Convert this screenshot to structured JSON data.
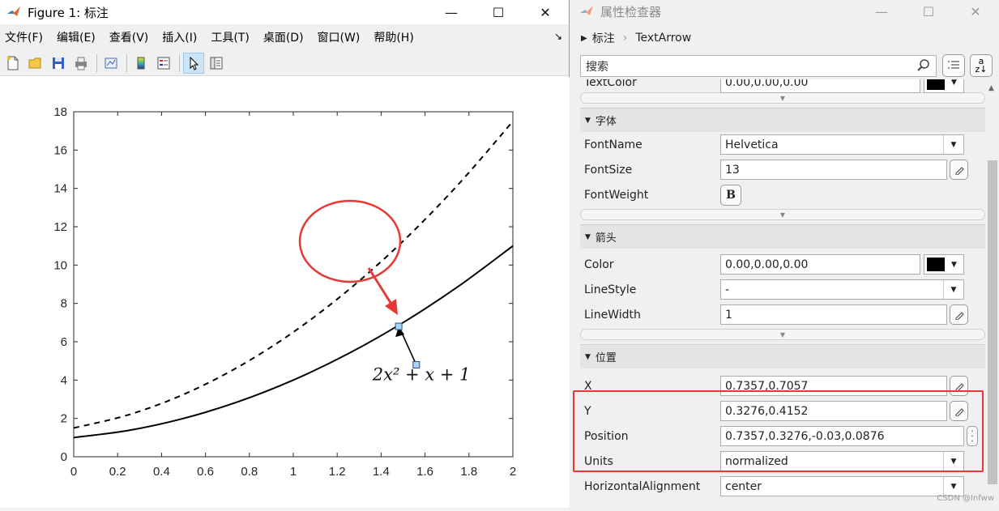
{
  "figure": {
    "title": "Figure 1: 标注",
    "menu": [
      "文件(F)",
      "编辑(E)",
      "查看(V)",
      "插入(I)",
      "工具(T)",
      "桌面(D)",
      "窗口(W)",
      "帮助(H)"
    ],
    "window_controls": {
      "minimize": "—",
      "maximize": "☐",
      "close": "✕"
    }
  },
  "chart_data": {
    "type": "line",
    "xlim": [
      0,
      2
    ],
    "ylim": [
      0,
      18
    ],
    "x_ticks": [
      "0",
      "0.2",
      "0.4",
      "0.6",
      "0.8",
      "1",
      "1.2",
      "1.4",
      "1.6",
      "1.8",
      "2"
    ],
    "y_ticks": [
      "0",
      "2",
      "4",
      "6",
      "8",
      "10",
      "12",
      "14",
      "16",
      "18"
    ],
    "series": [
      {
        "style": "solid",
        "function": "2x^2+x+1",
        "x": [
          0,
          0.25,
          0.5,
          0.75,
          1,
          1.25,
          1.5,
          1.75,
          2
        ],
        "y": [
          1,
          1.375,
          2,
          2.875,
          4,
          5.375,
          7,
          8.875,
          11
        ]
      },
      {
        "style": "dashed",
        "function": "3x^2+2x+1.5",
        "x": [
          0,
          0.25,
          0.5,
          0.75,
          1,
          1.25,
          1.5,
          1.75,
          2
        ],
        "y": [
          1.5,
          2.19,
          3.25,
          4.69,
          6.5,
          8.69,
          11.25,
          14.19,
          17.5
        ]
      }
    ],
    "annotation": {
      "text": "2x² + x + 1",
      "arrow_tail": [
        1.56,
        4.8
      ],
      "arrow_head": [
        1.48,
        6.8
      ]
    },
    "colors": {
      "overlay": "#e53935"
    }
  },
  "inspector": {
    "title": "属性检查器",
    "breadcrumb": [
      "标注",
      "TextArrow"
    ],
    "search_placeholder": "搜索",
    "textcolor": {
      "label": "TextColor",
      "value": "0.00,0.00,0.00"
    },
    "sections": {
      "font": "字体",
      "arrow": "箭头",
      "position": "位置"
    },
    "font_props": [
      {
        "label": "FontName",
        "value": "Helvetica"
      },
      {
        "label": "FontSize",
        "value": "13"
      },
      {
        "label": "FontWeight",
        "value": "B"
      }
    ],
    "arrow_props": [
      {
        "label": "Color",
        "value": "0.00,0.00,0.00"
      },
      {
        "label": "LineStyle",
        "value": "-"
      },
      {
        "label": "LineWidth",
        "value": "1"
      }
    ],
    "position_props": [
      {
        "label": "X",
        "value": "0.7357,0.7057"
      },
      {
        "label": "Y",
        "value": "0.3276,0.4152"
      },
      {
        "label": "Position",
        "value": "0.7357,0.3276,-0.03,0.0876"
      },
      {
        "label": "Units",
        "value": "normalized"
      },
      {
        "label": "HorizontalAlignment",
        "value": "center"
      }
    ],
    "watermark": "CSDN @Infww"
  }
}
